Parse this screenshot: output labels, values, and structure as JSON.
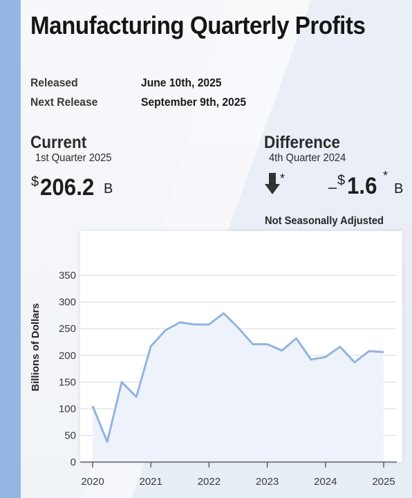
{
  "header": {
    "title": "Manufacturing Quarterly Profits"
  },
  "release": {
    "released_label": "Released",
    "released_value": "June 10th, 2025",
    "next_label": "Next Release",
    "next_value": "September 9th, 2025"
  },
  "current": {
    "heading": "Current",
    "period": "1st Quarter 2025",
    "currency": "$",
    "value": "206.2",
    "unit": "B"
  },
  "difference": {
    "heading": "Difference",
    "period": "4th Quarter 2024",
    "arrow_icon": "arrow-down-icon",
    "arrow_note": "*",
    "sign": "–",
    "currency": "$",
    "value": "1.6",
    "note": "*",
    "unit": "B"
  },
  "adjustment_note": "Not Seasonally Adjusted",
  "colors": {
    "line": "#93b3df",
    "area": "#eef3fb",
    "left_band": "#94b6e3",
    "grid": "#d9d9d9"
  },
  "chart_data": {
    "type": "area",
    "ylabel": "Billions of Dollars",
    "ylim": [
      0,
      390
    ],
    "yticks": [
      0,
      50,
      100,
      150,
      200,
      250,
      300,
      350
    ],
    "xticks": [
      "2020",
      "2021",
      "2022",
      "2023",
      "2024",
      "2025"
    ],
    "grid": true,
    "series": [
      {
        "x": [
          "2020 Q1",
          "2020 Q2",
          "2020 Q3",
          "2020 Q4",
          "2021 Q1",
          "2021 Q2",
          "2021 Q3",
          "2021 Q4",
          "2022 Q1",
          "2022 Q2",
          "2022 Q3",
          "2022 Q4",
          "2023 Q1",
          "2023 Q2",
          "2023 Q3",
          "2023 Q4",
          "2024 Q1",
          "2024 Q2",
          "2024 Q3",
          "2024 Q4",
          "2025 Q1"
        ],
        "values": [
          105,
          38,
          150,
          122,
          217,
          247,
          262,
          258,
          258,
          279,
          252,
          221,
          221,
          209,
          232,
          192,
          197,
          216,
          187,
          208,
          206.2
        ]
      }
    ]
  }
}
